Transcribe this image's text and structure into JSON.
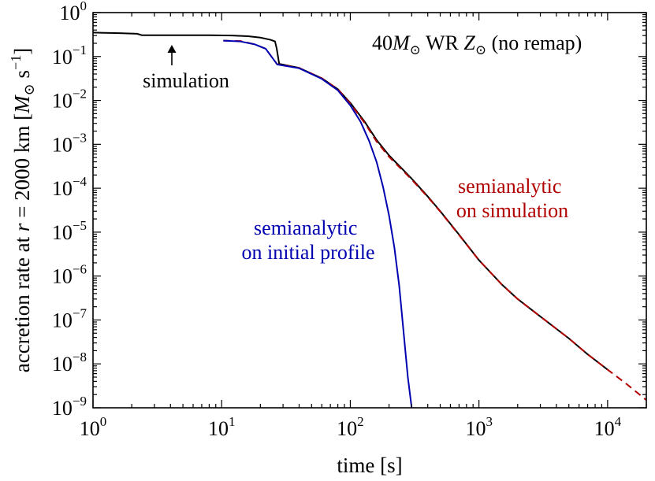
{
  "chart_data": {
    "type": "line",
    "title": "",
    "xlabel": "time [s]",
    "ylabel": "accretion rate at r = 2000 km [M☉ s−1]",
    "xscale": "log",
    "yscale": "log",
    "xlim": [
      1,
      20000
    ],
    "ylim": [
      1e-09,
      1
    ],
    "grid": false,
    "x_ticks": [
      {
        "base": "10",
        "exp": "0",
        "value": 1
      },
      {
        "base": "10",
        "exp": "1",
        "value": 10
      },
      {
        "base": "10",
        "exp": "2",
        "value": 100
      },
      {
        "base": "10",
        "exp": "3",
        "value": 1000
      },
      {
        "base": "10",
        "exp": "4",
        "value": 10000
      }
    ],
    "y_ticks": [
      {
        "base": "10",
        "exp": "0",
        "value": 1
      },
      {
        "base": "10",
        "exp": "−1",
        "value": 0.1
      },
      {
        "base": "10",
        "exp": "−2",
        "value": 0.01
      },
      {
        "base": "10",
        "exp": "−3",
        "value": 0.001
      },
      {
        "base": "10",
        "exp": "−4",
        "value": 0.0001
      },
      {
        "base": "10",
        "exp": "−5",
        "value": 1e-05
      },
      {
        "base": "10",
        "exp": "−6",
        "value": 1e-06
      },
      {
        "base": "10",
        "exp": "−7",
        "value": 1e-07
      },
      {
        "base": "10",
        "exp": "−8",
        "value": 1e-08
      },
      {
        "base": "10",
        "exp": "−9",
        "value": 1e-09
      }
    ],
    "model_label": {
      "mass": "40",
      "rest": "WR",
      "metal": "(no remap)"
    },
    "annotations": [
      {
        "text": "simulation",
        "color": "#000000"
      },
      {
        "lines": [
          "semianalytic",
          "on simulation"
        ],
        "color": "#b00000"
      },
      {
        "lines": [
          "semianalytic",
          "on initial profile"
        ],
        "color": "#0000b0"
      }
    ],
    "series": [
      {
        "name": "simulation",
        "color": "#000000",
        "style": "solid",
        "points": [
          [
            1,
            0.35
          ],
          [
            1.6,
            0.34
          ],
          [
            2.2,
            0.33
          ],
          [
            2.4,
            0.305
          ],
          [
            4,
            0.305
          ],
          [
            8,
            0.305
          ],
          [
            12,
            0.3
          ],
          [
            16,
            0.29
          ],
          [
            20,
            0.27
          ],
          [
            24,
            0.24
          ],
          [
            26,
            0.22
          ],
          [
            26.8,
            0.15
          ],
          [
            28,
            0.068
          ],
          [
            40,
            0.055
          ],
          [
            60,
            0.032
          ],
          [
            80,
            0.018
          ],
          [
            100,
            0.0088
          ],
          [
            130,
            0.0032
          ],
          [
            160,
            0.00126
          ],
          [
            200,
            0.00056
          ],
          [
            300,
            0.000165
          ],
          [
            400,
            6.5e-05
          ],
          [
            500,
            3e-05
          ],
          [
            700,
            8.8e-06
          ],
          [
            1000,
            2.3e-06
          ],
          [
            1500,
            6.5e-07
          ],
          [
            2000,
            3e-07
          ],
          [
            3000,
            1.2e-07
          ],
          [
            5000,
            3.8e-08
          ],
          [
            7000,
            1.65e-08
          ],
          [
            10000,
            7.4e-09
          ]
        ]
      },
      {
        "name": "semianalytic on simulation",
        "color": "#b00000",
        "style": "dashed",
        "points": [
          [
            10.3,
            0.23
          ],
          [
            14,
            0.225
          ],
          [
            18,
            0.19
          ],
          [
            22,
            0.15
          ],
          [
            25,
            0.09
          ],
          [
            27,
            0.067
          ],
          [
            40,
            0.055
          ],
          [
            60,
            0.032
          ],
          [
            80,
            0.018
          ],
          [
            100,
            0.0085
          ],
          [
            130,
            0.003
          ],
          [
            160,
            0.00116
          ],
          [
            200,
            0.00052
          ],
          [
            300,
            0.000158
          ],
          [
            400,
            6.3e-05
          ],
          [
            500,
            2.95e-05
          ],
          [
            700,
            8.6e-06
          ],
          [
            1000,
            2.3e-06
          ],
          [
            1500,
            6.5e-07
          ],
          [
            2000,
            3e-07
          ],
          [
            3000,
            1.2e-07
          ],
          [
            5000,
            3.8e-08
          ],
          [
            7000,
            1.65e-08
          ],
          [
            10000,
            7.4e-09
          ],
          [
            14000,
            3.5e-09
          ],
          [
            20000,
            1.5e-09
          ]
        ]
      },
      {
        "name": "semianalytic on initial profile",
        "color": "#0000b0",
        "style": "solid",
        "points": [
          [
            10.3,
            0.23
          ],
          [
            14,
            0.22
          ],
          [
            18,
            0.19
          ],
          [
            22,
            0.15
          ],
          [
            25,
            0.09
          ],
          [
            27,
            0.066
          ],
          [
            40,
            0.054
          ],
          [
            60,
            0.031
          ],
          [
            80,
            0.017
          ],
          [
            100,
            0.0077
          ],
          [
            120,
            0.0033
          ],
          [
            140,
            0.0012
          ],
          [
            160,
            0.0004
          ],
          [
            180,
            0.000105
          ],
          [
            200,
            2.4e-05
          ],
          [
            220,
            4.5e-06
          ],
          [
            240,
            6e-07
          ],
          [
            260,
            5e-08
          ],
          [
            280,
            5e-09
          ],
          [
            300,
            1e-09
          ]
        ]
      }
    ]
  }
}
